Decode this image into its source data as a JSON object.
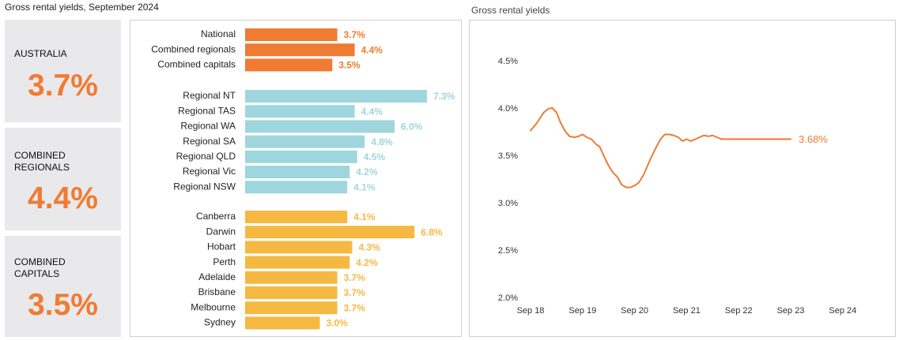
{
  "titles": {
    "main": "Gross rental yields, September 2024",
    "line": "Gross rental yields"
  },
  "kpis": [
    {
      "label_lines": [
        "AUSTRALIA"
      ],
      "value": "3.7%"
    },
    {
      "label_lines": [
        "COMBINED",
        "REGIONALS"
      ],
      "value": "4.4%"
    },
    {
      "label_lines": [
        "COMBINED",
        "CAPITALS"
      ],
      "value": "3.5%"
    }
  ],
  "colors": {
    "orange": "#f07b32",
    "teal": "#9fd6dd",
    "yellow": "#f5b942",
    "kpi_bg": "#e9e9ec"
  },
  "chart_data": [
    {
      "type": "bar",
      "orientation": "horizontal",
      "groups": [
        {
          "color": "#f07b32",
          "categories": [
            "National",
            "Combined regionals",
            "Combined capitals"
          ],
          "values": [
            3.7,
            4.4,
            3.5
          ],
          "labels": [
            "3.7%",
            "4.4%",
            "3.5%"
          ]
        },
        {
          "color": "#9fd6dd",
          "categories": [
            "Regional NT",
            "Regional TAS",
            "Regional WA",
            "Regional SA",
            "Regional QLD",
            "Regional Vic",
            "Regional NSW"
          ],
          "values": [
            7.3,
            4.4,
            6.0,
            4.8,
            4.5,
            4.2,
            4.1
          ],
          "labels": [
            "7.3%",
            "4.4%",
            "6.0%",
            "4.8%",
            "4.5%",
            "4.2%",
            "4.1%"
          ]
        },
        {
          "color": "#f5b942",
          "categories": [
            "Canberra",
            "Darwin",
            "Hobart",
            "Perth",
            "Adelaide",
            "Brisbane",
            "Melbourne",
            "Sydney"
          ],
          "values": [
            4.1,
            6.8,
            4.3,
            4.2,
            3.7,
            3.7,
            3.7,
            3.0
          ],
          "labels": [
            "4.1%",
            "6.8%",
            "4.3%",
            "4.2%",
            "3.7%",
            "3.7%",
            "3.7%",
            "3.0%"
          ]
        }
      ]
    },
    {
      "type": "line",
      "x_ticks": [
        "Sep 18",
        "Sep 19",
        "Sep 20",
        "Sep 21",
        "Sep 22",
        "Sep 23",
        "Sep 24"
      ],
      "y_ticks": [
        "2.0%",
        "2.5%",
        "3.0%",
        "3.5%",
        "4.0%",
        "4.5%"
      ],
      "ylim": [
        2.0,
        4.5
      ],
      "grid": false,
      "color": "#f07b32",
      "end_label": "3.68%",
      "series": [
        {
          "x": [
            2018.71,
            2018.83,
            2018.96,
            2019.05,
            2019.13,
            2019.21,
            2019.29,
            2019.38,
            2019.46,
            2019.55,
            2019.63,
            2019.71,
            2019.79,
            2019.88,
            2019.96,
            2020.04,
            2020.13,
            2020.21,
            2020.29,
            2020.38,
            2020.46,
            2020.55,
            2020.63,
            2020.71,
            2020.79,
            2020.88,
            2020.96,
            2021.04,
            2021.13,
            2021.21,
            2021.29,
            2021.38,
            2021.46,
            2021.55,
            2021.63,
            2021.71,
            2021.79,
            2021.88,
            2021.96,
            2022.04,
            2022.13,
            2022.21,
            2022.29,
            2022.38,
            2022.46,
            2022.55,
            2022.63,
            2022.71,
            2022.79,
            2022.88,
            2022.96,
            2023.04,
            2023.13,
            2023.21,
            2023.29,
            2023.38,
            2023.46,
            2023.55,
            2023.63,
            2023.71
          ],
          "y": [
            3.77,
            3.85,
            3.96,
            4.0,
            4.01,
            3.96,
            3.85,
            3.76,
            3.71,
            3.7,
            3.71,
            3.73,
            3.7,
            3.68,
            3.63,
            3.6,
            3.49,
            3.4,
            3.33,
            3.28,
            3.2,
            3.17,
            3.17,
            3.19,
            3.22,
            3.3,
            3.4,
            3.5,
            3.6,
            3.68,
            3.73,
            3.73,
            3.72,
            3.7,
            3.66,
            3.68,
            3.66,
            3.68,
            3.7,
            3.72,
            3.71,
            3.72,
            3.7,
            3.68,
            3.68,
            3.68,
            3.68,
            3.68,
            3.68,
            3.68,
            3.68,
            3.68,
            3.68,
            3.68,
            3.68,
            3.68,
            3.68,
            3.68,
            3.68,
            3.68
          ]
        }
      ]
    }
  ]
}
